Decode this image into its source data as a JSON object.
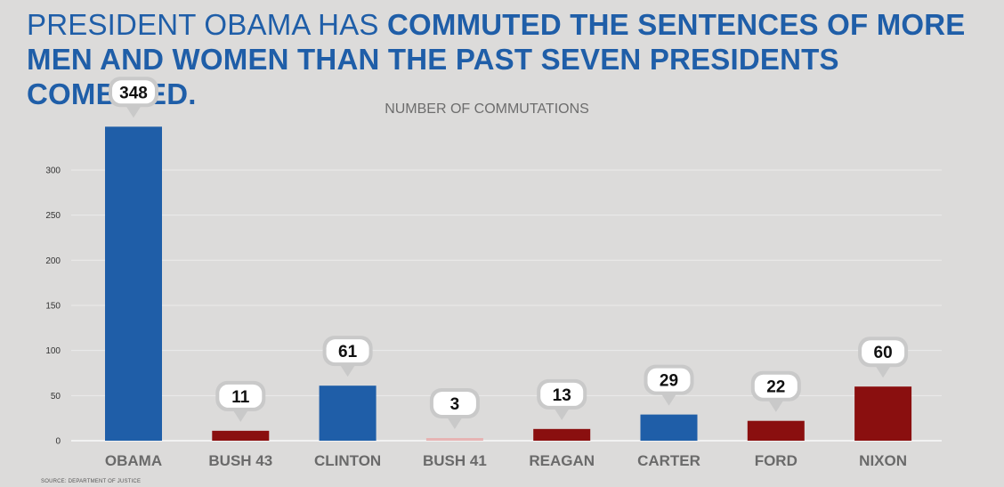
{
  "headline": {
    "light": "PRESIDENT OBAMA HAS ",
    "bold": "COMMUTED THE SENTENCES OF MORE MEN AND WOMEN THAN THE PAST SEVEN PRESIDENTS COMBINED."
  },
  "source": "SOURCE: DEPARTMENT OF JUSTICE",
  "colors": {
    "blue": "#1f5ea8",
    "red": "#8a0f0f",
    "title": "#1f5ea8"
  },
  "chart_data": {
    "type": "bar",
    "title": "NUMBER OF COMMUTATIONS",
    "categories": [
      "OBAMA",
      "BUSH 43",
      "CLINTON",
      "BUSH 41",
      "REAGAN",
      "CARTER",
      "FORD",
      "NIXON"
    ],
    "values": [
      348,
      11,
      61,
      3,
      13,
      29,
      22,
      60
    ],
    "party_colors": [
      "blue",
      "red",
      "blue",
      "red",
      "red",
      "blue",
      "red",
      "red"
    ],
    "ylim": [
      0,
      348
    ],
    "yticks": [
      0,
      50,
      100,
      150,
      200,
      250,
      300
    ],
    "grid": true,
    "xlabel": "",
    "ylabel": ""
  }
}
